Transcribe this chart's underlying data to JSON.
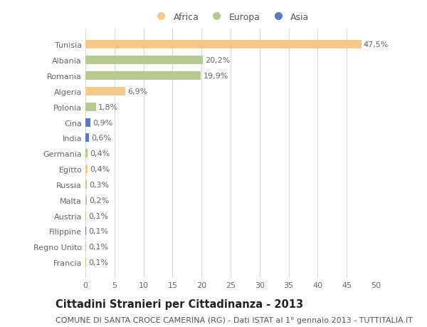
{
  "countries": [
    "Tunisia",
    "Albania",
    "Romania",
    "Algeria",
    "Polonia",
    "Cina",
    "India",
    "Germania",
    "Egitto",
    "Russia",
    "Malta",
    "Austria",
    "Filippine",
    "Regno Unito",
    "Francia"
  ],
  "values": [
    47.5,
    20.2,
    19.9,
    6.9,
    1.8,
    0.9,
    0.6,
    0.4,
    0.4,
    0.3,
    0.2,
    0.1,
    0.1,
    0.1,
    0.1
  ],
  "labels": [
    "47,5%",
    "20,2%",
    "19,9%",
    "6,9%",
    "1,8%",
    "0,9%",
    "0,6%",
    "0,4%",
    "0,4%",
    "0,3%",
    "0,2%",
    "0,1%",
    "0,1%",
    "0,1%",
    "0,1%"
  ],
  "colors": [
    "#f5c98a",
    "#b5cc8e",
    "#b5cc8e",
    "#f5c98a",
    "#b5cc8e",
    "#5b7bbf",
    "#5b7bbf",
    "#b5cc8e",
    "#f5c98a",
    "#b5cc8e",
    "#b5cc8e",
    "#b5cc8e",
    "#5b7bbf",
    "#b5cc8e",
    "#b5cc8e"
  ],
  "continent": [
    "Africa",
    "Europa",
    "Europa",
    "Africa",
    "Europa",
    "Asia",
    "Asia",
    "Europa",
    "Africa",
    "Europa",
    "Europa",
    "Europa",
    "Asia",
    "Europa",
    "Europa"
  ],
  "legend_labels": [
    "Africa",
    "Europa",
    "Asia"
  ],
  "legend_colors": [
    "#f5c98a",
    "#b5cc8e",
    "#5b7bbf"
  ],
  "xlim": [
    0,
    50
  ],
  "xticks": [
    0,
    5,
    10,
    15,
    20,
    25,
    30,
    35,
    40,
    45,
    50
  ],
  "title": "Cittadini Stranieri per Cittadinanza - 2013",
  "subtitle": "COMUNE DI SANTA CROCE CAMERINA (RG) - Dati ISTAT al 1° gennaio 2013 - TUTTITALIA.IT",
  "bg_color": "#ffffff",
  "grid_color": "#d8d8d8",
  "bar_height": 0.55,
  "title_fontsize": 10.5,
  "subtitle_fontsize": 8,
  "tick_fontsize": 8,
  "label_fontsize": 8
}
